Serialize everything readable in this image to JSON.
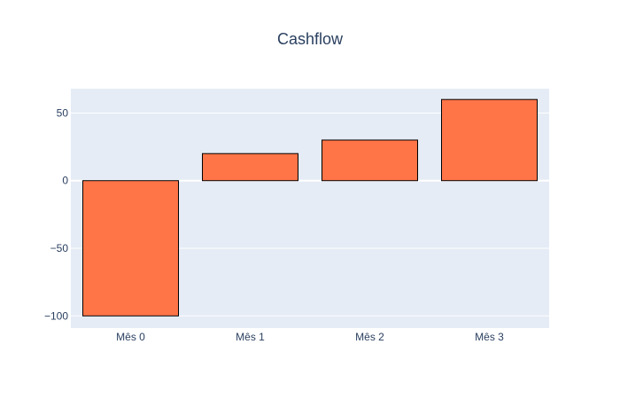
{
  "chart_data": {
    "type": "bar",
    "title": "Cashflow",
    "categories": [
      "Mês 0",
      "Mês 1",
      "Mês 2",
      "Mês 3"
    ],
    "values": [
      -100,
      20,
      30,
      60
    ],
    "yticks": [
      -100,
      -50,
      0,
      50
    ],
    "ytick_labels": [
      "−100",
      "−50",
      "0",
      "50"
    ],
    "ylim": [
      -109,
      68
    ],
    "xlabel": "",
    "ylabel": "",
    "grid": true,
    "legend": false,
    "colors": {
      "bar_fill": "#ff7548",
      "bar_stroke": "#000000",
      "plot_bg": "#e5ecf6",
      "grid": "#ffffff",
      "text": "#2a3f5f"
    }
  }
}
